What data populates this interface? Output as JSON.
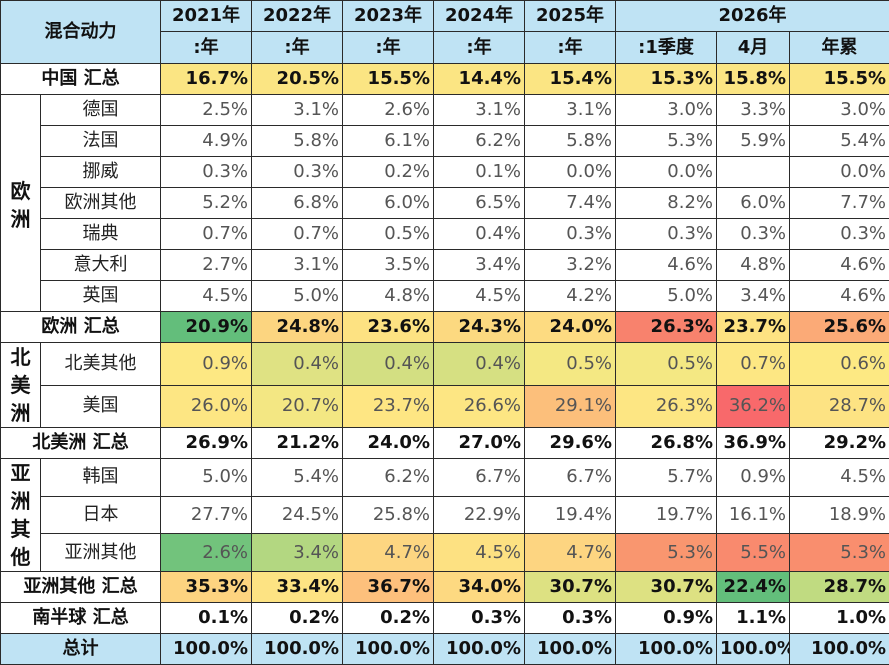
{
  "header": {
    "title": "混合动力",
    "years": [
      "2021年",
      "2022年",
      "2023年",
      "2024年",
      "2025年",
      "2026年"
    ],
    "subs": [
      ":年",
      ":年",
      ":年",
      ":年",
      ":年",
      ":1季度",
      "4月",
      "年累"
    ]
  },
  "rows": {
    "china_total": {
      "label": "中国 汇总",
      "values": [
        "16.7%",
        "20.5%",
        "15.5%",
        "14.4%",
        "15.4%",
        "15.3%",
        "15.8%",
        "15.5%"
      ]
    },
    "europe": {
      "region": "欧洲",
      "items": [
        {
          "label": "德国",
          "values": [
            "2.5%",
            "3.1%",
            "2.6%",
            "3.1%",
            "3.1%",
            "3.0%",
            "3.3%",
            "3.0%"
          ]
        },
        {
          "label": "法国",
          "values": [
            "4.9%",
            "5.8%",
            "6.1%",
            "6.2%",
            "5.8%",
            "5.3%",
            "5.9%",
            "5.4%"
          ]
        },
        {
          "label": "挪威",
          "values": [
            "0.3%",
            "0.3%",
            "0.2%",
            "0.1%",
            "0.0%",
            "0.0%",
            "",
            "0.0%"
          ]
        },
        {
          "label": "欧洲其他",
          "values": [
            "5.2%",
            "6.8%",
            "6.0%",
            "6.5%",
            "7.4%",
            "8.2%",
            "6.0%",
            "7.7%"
          ]
        },
        {
          "label": "瑞典",
          "values": [
            "0.7%",
            "0.7%",
            "0.5%",
            "0.4%",
            "0.3%",
            "0.3%",
            "0.3%",
            "0.3%"
          ]
        },
        {
          "label": "意大利",
          "values": [
            "2.7%",
            "3.1%",
            "3.5%",
            "3.4%",
            "3.2%",
            "4.6%",
            "4.8%",
            "4.6%"
          ]
        },
        {
          "label": "英国",
          "values": [
            "4.5%",
            "5.0%",
            "4.8%",
            "4.5%",
            "4.2%",
            "5.0%",
            "3.4%",
            "4.6%"
          ]
        }
      ],
      "total": {
        "label": "欧洲 汇总",
        "values": [
          "20.9%",
          "24.8%",
          "23.6%",
          "24.3%",
          "24.0%",
          "26.3%",
          "23.7%",
          "25.6%"
        ]
      }
    },
    "north_america": {
      "region": "北美洲",
      "items": [
        {
          "label": "北美其他",
          "values": [
            "0.9%",
            "0.4%",
            "0.4%",
            "0.4%",
            "0.5%",
            "0.5%",
            "0.7%",
            "0.6%"
          ]
        },
        {
          "label": "美国",
          "values": [
            "26.0%",
            "20.7%",
            "23.7%",
            "26.6%",
            "29.1%",
            "26.3%",
            "36.2%",
            "28.7%"
          ]
        }
      ],
      "total": {
        "label": "北美洲 汇总",
        "values": [
          "26.9%",
          "21.2%",
          "24.0%",
          "27.0%",
          "29.6%",
          "26.8%",
          "36.9%",
          "29.2%"
        ]
      }
    },
    "asia_other": {
      "region": "亚洲其他",
      "items": [
        {
          "label": "韩国",
          "values": [
            "5.0%",
            "5.4%",
            "6.2%",
            "6.7%",
            "6.7%",
            "5.7%",
            "0.9%",
            "4.5%"
          ]
        },
        {
          "label": "日本",
          "values": [
            "27.7%",
            "24.5%",
            "25.8%",
            "22.9%",
            "19.4%",
            "19.7%",
            "16.1%",
            "18.9%"
          ]
        },
        {
          "label": "亚洲其他",
          "values": [
            "2.6%",
            "3.4%",
            "4.7%",
            "4.5%",
            "4.7%",
            "5.3%",
            "5.5%",
            "5.3%"
          ]
        }
      ],
      "total": {
        "label": "亚洲其他 汇总",
        "values": [
          "35.3%",
          "33.4%",
          "36.7%",
          "34.0%",
          "30.7%",
          "30.7%",
          "22.4%",
          "28.7%"
        ]
      }
    },
    "south_total": {
      "label": "南半球 汇总",
      "values": [
        "0.1%",
        "0.2%",
        "0.2%",
        "0.3%",
        "0.3%",
        "0.9%",
        "1.1%",
        "1.0%"
      ]
    },
    "grand_total": {
      "label": "总计",
      "values": [
        "100.0%",
        "100.0%",
        "100.0%",
        "100.0%",
        "100.0%",
        "100.0%",
        "100.0%",
        "100.0%"
      ]
    }
  },
  "heat_colors": {
    "china_total": [
      "#fbe583",
      "#fbe583",
      "#fbe583",
      "#fbe583",
      "#fbe583",
      "#fbe583",
      "#fbe583",
      "#fbe583"
    ],
    "europe_total": [
      "#63be7b",
      "#fcd580",
      "#fde282",
      "#fcd980",
      "#fddb81",
      "#f8826d",
      "#fde282",
      "#fbaa77"
    ],
    "na_other": [
      "#fde883",
      "#dfe283",
      "#d3df82",
      "#d6e082",
      "#f4e883",
      "#f4e883",
      "#fde783",
      "#fde983"
    ],
    "us": [
      "#fde683",
      "#f3e783",
      "#fee683",
      "#fde683",
      "#fcbf7b",
      "#fde683",
      "#f8696b",
      "#fde383"
    ],
    "asia_other_item": [
      "#72c37c",
      "#b3d781",
      "#fdd681",
      "#fde182",
      "#fdd581",
      "#f9966f",
      "#f98a6e",
      "#f98e6e"
    ],
    "asia_total": [
      "#fdd480",
      "#fde383",
      "#fdc07c",
      "#fdd981",
      "#dde182",
      "#dde182",
      "#63be7b",
      "#c0db81"
    ]
  }
}
